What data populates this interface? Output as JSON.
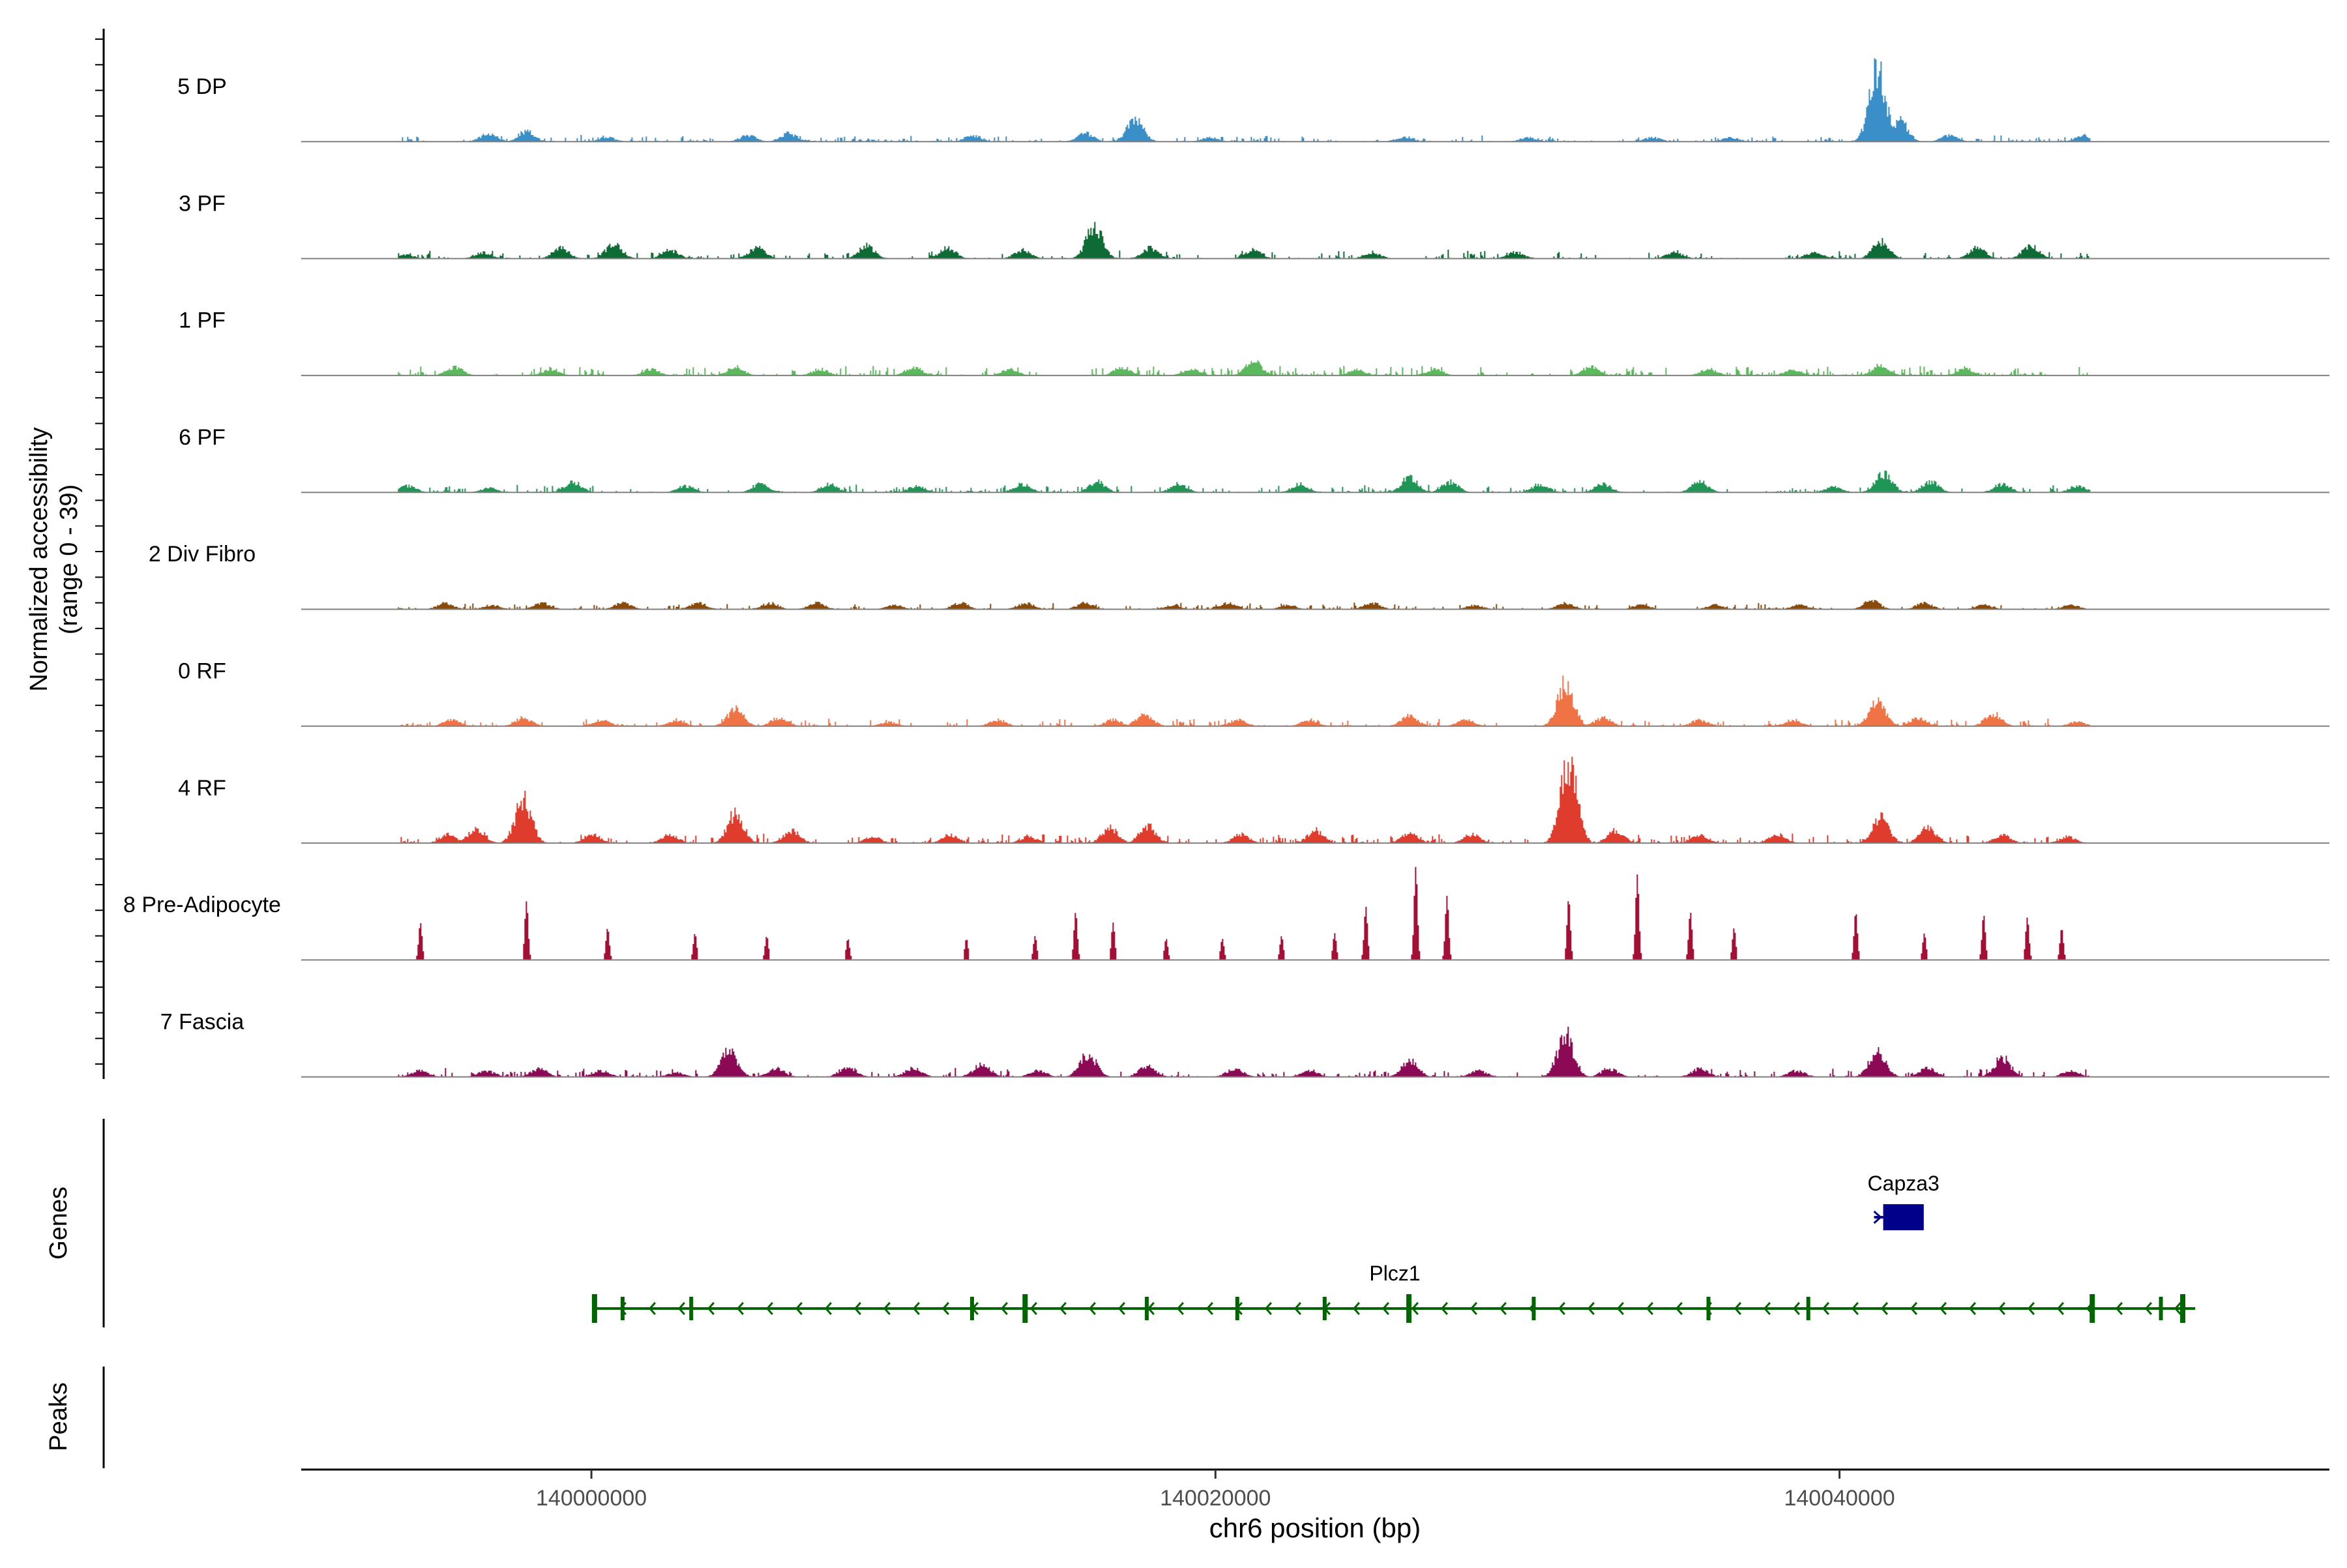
{
  "chart_data": {
    "type": "area",
    "ylabel_line1": "Normalized accessibility",
    "ylabel_line2": "(range 0 - 39)",
    "y_range": [
      0,
      39
    ],
    "xlabel": "chr6 position (bp)",
    "x_range": [
      139990700,
      140055700
    ],
    "x_ticks": [
      {
        "value": 140000000,
        "label": "140000000"
      },
      {
        "value": 140020000,
        "label": "140020000"
      },
      {
        "value": 140040000,
        "label": "140040000"
      }
    ],
    "track_start": 139993800,
    "track_end": 140048000,
    "series": [
      {
        "name": "5 DP",
        "color": "#3a8fc8",
        "base": 1.2,
        "peaks": [
          [
            139996700,
            4
          ],
          [
            139997900,
            5
          ],
          [
            140000500,
            2
          ],
          [
            140005000,
            3
          ],
          [
            140006300,
            4
          ],
          [
            140012200,
            3
          ],
          [
            140015800,
            4
          ],
          [
            140017400,
            11
          ],
          [
            140019800,
            2
          ],
          [
            140026000,
            2
          ],
          [
            140030000,
            2
          ],
          [
            140034000,
            2
          ],
          [
            140036500,
            2
          ],
          [
            140041200,
            35
          ],
          [
            140041900,
            10
          ],
          [
            140043500,
            3
          ],
          [
            140047800,
            3
          ]
        ]
      },
      {
        "name": "3 PF",
        "color": "#0e6b35",
        "base": 1.6,
        "peaks": [
          [
            139994000,
            2
          ],
          [
            139996500,
            3
          ],
          [
            139999000,
            5
          ],
          [
            140000700,
            7
          ],
          [
            140002500,
            4
          ],
          [
            140005300,
            5
          ],
          [
            140008800,
            6
          ],
          [
            140011400,
            5
          ],
          [
            140013800,
            4
          ],
          [
            140016100,
            15
          ],
          [
            140017900,
            5
          ],
          [
            140021200,
            4
          ],
          [
            140025000,
            3
          ],
          [
            140029600,
            3
          ],
          [
            140034700,
            3
          ],
          [
            140039200,
            3
          ],
          [
            140041300,
            8
          ],
          [
            140044400,
            5
          ],
          [
            140046100,
            6
          ]
        ]
      },
      {
        "name": "1 PF",
        "color": "#5cb85c",
        "base": 1.8,
        "peaks": [
          [
            139995600,
            4
          ],
          [
            139998700,
            3
          ],
          [
            140001900,
            3
          ],
          [
            140004600,
            4
          ],
          [
            140007300,
            3
          ],
          [
            140010300,
            4
          ],
          [
            140013400,
            3
          ],
          [
            140017000,
            4
          ],
          [
            140019200,
            3
          ],
          [
            140021200,
            7
          ],
          [
            140024500,
            3
          ],
          [
            140027000,
            3
          ],
          [
            140032000,
            4
          ],
          [
            140035800,
            3
          ],
          [
            140038500,
            3
          ],
          [
            140041300,
            5
          ],
          [
            140044000,
            3
          ]
        ]
      },
      {
        "name": "6 PF",
        "color": "#1f9655",
        "base": 1.4,
        "peaks": [
          [
            139994100,
            3
          ],
          [
            139996700,
            2
          ],
          [
            139999400,
            5
          ],
          [
            140003000,
            3
          ],
          [
            140005400,
            4
          ],
          [
            140007600,
            4
          ],
          [
            140010400,
            3
          ],
          [
            140013800,
            4
          ],
          [
            140016200,
            5
          ],
          [
            140018800,
            4
          ],
          [
            140022700,
            4
          ],
          [
            140026200,
            7
          ],
          [
            140027500,
            5
          ],
          [
            140030400,
            4
          ],
          [
            140032400,
            4
          ],
          [
            140035500,
            5
          ],
          [
            140039800,
            3
          ],
          [
            140041400,
            9
          ],
          [
            140042900,
            5
          ],
          [
            140045200,
            4
          ],
          [
            140047600,
            3
          ]
        ]
      },
      {
        "name": "2 Div Fibro",
        "color": "#8a4a0a",
        "base": 1.2,
        "peaks": [
          [
            139995300,
            3
          ],
          [
            139996800,
            2
          ],
          [
            139998400,
            3
          ],
          [
            140001000,
            3
          ],
          [
            140003400,
            3
          ],
          [
            140005700,
            3
          ],
          [
            140007200,
            3
          ],
          [
            140009700,
            2
          ],
          [
            140011800,
            3
          ],
          [
            140013900,
            3
          ],
          [
            140015800,
            3
          ],
          [
            140018600,
            2
          ],
          [
            140020400,
            3
          ],
          [
            140022300,
            2
          ],
          [
            140025000,
            3
          ],
          [
            140028300,
            2
          ],
          [
            140031200,
            3
          ],
          [
            140033600,
            2
          ],
          [
            140036000,
            2
          ],
          [
            140038700,
            2
          ],
          [
            140041000,
            4
          ],
          [
            140042700,
            3
          ],
          [
            140044600,
            2
          ],
          [
            140047400,
            2
          ]
        ]
      },
      {
        "name": "0 RF",
        "color": "#f07345",
        "base": 1.5,
        "peaks": [
          [
            139995500,
            3
          ],
          [
            139997800,
            4
          ],
          [
            140000300,
            3
          ],
          [
            140002700,
            3
          ],
          [
            140004600,
            8
          ],
          [
            140006000,
            4
          ],
          [
            140009500,
            2
          ],
          [
            140013000,
            3
          ],
          [
            140016700,
            3
          ],
          [
            140017700,
            6
          ],
          [
            140020700,
            3
          ],
          [
            140023000,
            3
          ],
          [
            140026200,
            5
          ],
          [
            140028000,
            3
          ],
          [
            140031200,
            20
          ],
          [
            140032400,
            4
          ],
          [
            140035500,
            3
          ],
          [
            140038500,
            3
          ],
          [
            140041200,
            12
          ],
          [
            140042500,
            4
          ],
          [
            140044900,
            6
          ],
          [
            140047600,
            2
          ]
        ]
      },
      {
        "name": "4 RF",
        "color": "#e03c2d",
        "base": 1.8,
        "peaks": [
          [
            139995400,
            4
          ],
          [
            139996300,
            7
          ],
          [
            139997800,
            20
          ],
          [
            140000000,
            4
          ],
          [
            140002500,
            4
          ],
          [
            140004600,
            14
          ],
          [
            140006400,
            6
          ],
          [
            140009000,
            3
          ],
          [
            140011500,
            4
          ],
          [
            140014000,
            3
          ],
          [
            140016600,
            7
          ],
          [
            140017800,
            8
          ],
          [
            140020800,
            4
          ],
          [
            140023200,
            6
          ],
          [
            140026200,
            5
          ],
          [
            140028200,
            4
          ],
          [
            140031300,
            38
          ],
          [
            140032800,
            6
          ],
          [
            140035500,
            4
          ],
          [
            140038000,
            4
          ],
          [
            140041300,
            12
          ],
          [
            140042800,
            7
          ],
          [
            140045200,
            4
          ],
          [
            140047300,
            3
          ]
        ]
      },
      {
        "name": "8 Pre-Adipocyte",
        "color": "#a31036",
        "base": 0,
        "peaks": [
          [
            139994500,
            14
          ],
          [
            139997900,
            22
          ],
          [
            140000500,
            12
          ],
          [
            140003300,
            10
          ],
          [
            140005600,
            9
          ],
          [
            140008200,
            8
          ],
          [
            140012000,
            8
          ],
          [
            140014200,
            9
          ],
          [
            140015500,
            18
          ],
          [
            140016700,
            14
          ],
          [
            140018400,
            8
          ],
          [
            140020200,
            8
          ],
          [
            140022100,
            9
          ],
          [
            140023800,
            10
          ],
          [
            140024800,
            20
          ],
          [
            140026400,
            35
          ],
          [
            140027400,
            24
          ],
          [
            140031300,
            23
          ],
          [
            140033500,
            32
          ],
          [
            140035200,
            18
          ],
          [
            140036600,
            12
          ],
          [
            140040500,
            18
          ],
          [
            140042700,
            10
          ],
          [
            140044600,
            17
          ],
          [
            140046000,
            16
          ],
          [
            140047100,
            12
          ]
        ]
      },
      {
        "name": "7 Fascia",
        "color": "#8c0a55",
        "base": 1.6,
        "peaks": [
          [
            139994500,
            3
          ],
          [
            139996600,
            3
          ],
          [
            139998300,
            4
          ],
          [
            140000300,
            3
          ],
          [
            140002700,
            2
          ],
          [
            140004400,
            12
          ],
          [
            140005900,
            4
          ],
          [
            140008200,
            5
          ],
          [
            140010300,
            4
          ],
          [
            140012500,
            6
          ],
          [
            140014300,
            3
          ],
          [
            140015900,
            11
          ],
          [
            140017800,
            5
          ],
          [
            140020600,
            4
          ],
          [
            140023000,
            3
          ],
          [
            140026200,
            8
          ],
          [
            140028400,
            3
          ],
          [
            140031200,
            20
          ],
          [
            140032600,
            4
          ],
          [
            140035500,
            4
          ],
          [
            140038600,
            3
          ],
          [
            140041200,
            12
          ],
          [
            140042800,
            4
          ],
          [
            140045200,
            9
          ],
          [
            140047400,
            3
          ]
        ]
      }
    ],
    "genes_label": "Genes",
    "peaks_label": "Peaks",
    "genes": [
      {
        "name": "Capza3",
        "color": "#00008b",
        "start": 140041400,
        "end": 140042700,
        "strand": "+"
      },
      {
        "name": "Plcz1",
        "color": "#006400",
        "start": 140000100,
        "end": 140051400,
        "strand": "-",
        "exons": [
          140000100,
          140001000,
          140003200,
          140012200,
          140013900,
          140017800,
          140020700,
          140023500,
          140026200,
          140030200,
          140035800,
          140039000,
          140048100,
          140050300,
          140051000
        ]
      }
    ]
  }
}
